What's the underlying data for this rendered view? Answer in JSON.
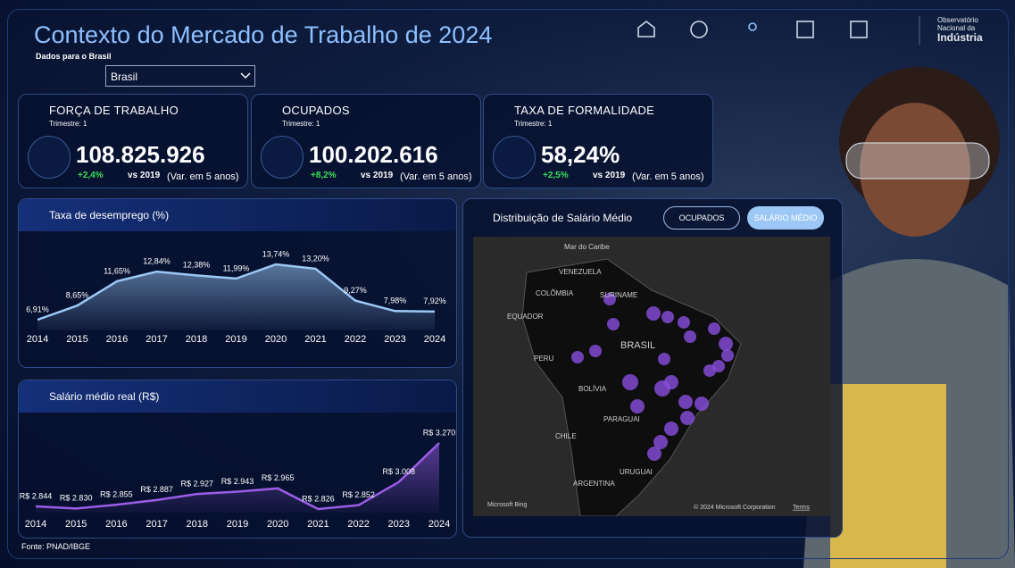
{
  "header": {
    "title": "Contexto do Mercado de Trabalho de 2024",
    "subtitle": "Dados para o Brasil",
    "dropdown": "Brasil",
    "logo": [
      "Observatório",
      "Nacional da",
      "Indústria"
    ]
  },
  "kpis": [
    {
      "title": "FORÇA DE TRABALHO",
      "period": "Trimestre: 1",
      "value": "108.825.926",
      "change": "+2,4%",
      "compare": "vs 2019",
      "note": "(Var. em 5 anos)"
    },
    {
      "title": "OCUPADOS",
      "period": "Trimestre: 1",
      "value": "100.202.616",
      "change": "+8,2%",
      "compare": "vs 2019",
      "note": "(Var. em 5 anos)"
    },
    {
      "title": "TAXA DE FORMALIDADE",
      "period": "Trimestre: 1",
      "value": "58,24%",
      "change": "+2,5%",
      "compare": "vs 2019",
      "note": "(Var. em 5 anos)"
    }
  ],
  "unemployment": {
    "type": "area",
    "title": "Taxa de desemprego (%)",
    "x": [
      2014,
      2015,
      2016,
      2017,
      2018,
      2019,
      2020,
      2021,
      2022,
      2023,
      2024
    ],
    "values": [
      6.91,
      8.65,
      11.65,
      12.84,
      12.38,
      11.99,
      13.74,
      13.2,
      9.27,
      7.98,
      7.92
    ],
    "value_labels": [
      "6,91%",
      "8,65%",
      "11,65%",
      "12,84%",
      "12,38%",
      "11,99%",
      "13,74%",
      "13,20%",
      "9,27%",
      "7,98%",
      "7,92%"
    ],
    "color": "#9cc8f5"
  },
  "salary": {
    "type": "area",
    "title": "Salário médio real (R$)",
    "x": [
      2014,
      2015,
      2016,
      2017,
      2018,
      2019,
      2020,
      2021,
      2022,
      2023,
      2024
    ],
    "values": [
      2844,
      2830,
      2855,
      2887,
      2927,
      2943,
      2965,
      2826,
      2852,
      3008,
      3270
    ],
    "value_labels": [
      "R$ 2.844",
      "R$ 2.830",
      "R$ 2.855",
      "R$ 2.887",
      "R$ 2.927",
      "R$ 2.943",
      "R$ 2.965",
      "R$ 2.826",
      "R$ 2.852",
      "R$ 3.008",
      "R$ 3.270"
    ],
    "color": "#9b5de5"
  },
  "map": {
    "title": "Distribuição de Salário Médio",
    "buttons": [
      "OCUPADOS",
      "SALÁRIO MÉDIO"
    ],
    "places": [
      "Mar do Caribe",
      "VENEZUELA",
      "COLÔMBIA",
      "SURINAME",
      "EQUADOR",
      "BRASIL",
      "PERU",
      "BOLÍVIA",
      "PARAGUAI",
      "CHILE",
      "URUGUAI",
      "ARGENTINA"
    ],
    "attribution": "Microsoft Bing",
    "copyright": "© 2024 Microsoft Corporation",
    "terms": "Terms"
  },
  "footer": "Fonte: PNAD/IBGE"
}
